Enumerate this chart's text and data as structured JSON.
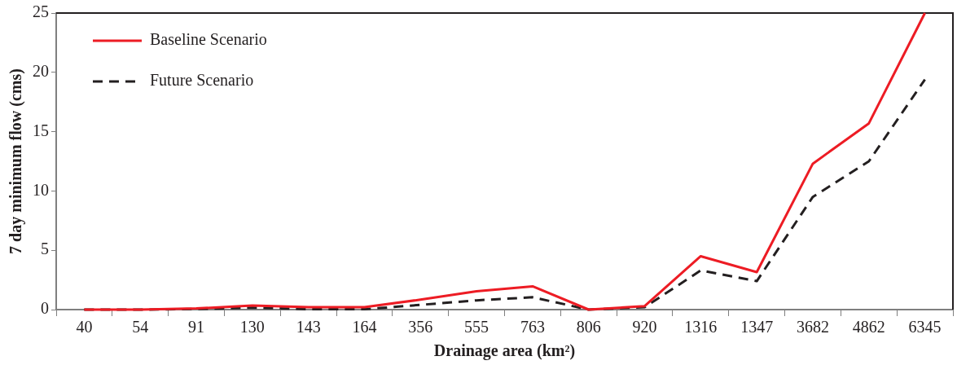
{
  "chart_data": {
    "type": "line",
    "xlabel": "Drainage area (km²)",
    "ylabel": "7 day minimum flow (cms)",
    "categories": [
      "40",
      "54",
      "91",
      "130",
      "143",
      "164",
      "356",
      "555",
      "763",
      "806",
      "920",
      "1316",
      "1347",
      "3682",
      "4862",
      "6345"
    ],
    "series": [
      {
        "name": "Baseline Scenario",
        "color": "#ed1c24",
        "line_style": "solid",
        "values": [
          0,
          0,
          0.1,
          0.34,
          0.2,
          0.2,
          0.84,
          1.54,
          1.96,
          0,
          0.3,
          4.5,
          3.16,
          12.3,
          15.7,
          25
        ]
      },
      {
        "name": "Future Scenario",
        "color": "#231f20",
        "line_style": "dashed",
        "values": [
          0,
          0,
          0.05,
          0.17,
          0.03,
          0.03,
          0.4,
          0.78,
          1.04,
          0,
          0.2,
          3.3,
          2.4,
          9.5,
          12.5,
          19.4
        ]
      }
    ],
    "ylim": [
      0,
      25
    ],
    "yticks": [
      0,
      5,
      10,
      15,
      20,
      25
    ],
    "grid": false,
    "legend": "top left",
    "marker": "none"
  }
}
